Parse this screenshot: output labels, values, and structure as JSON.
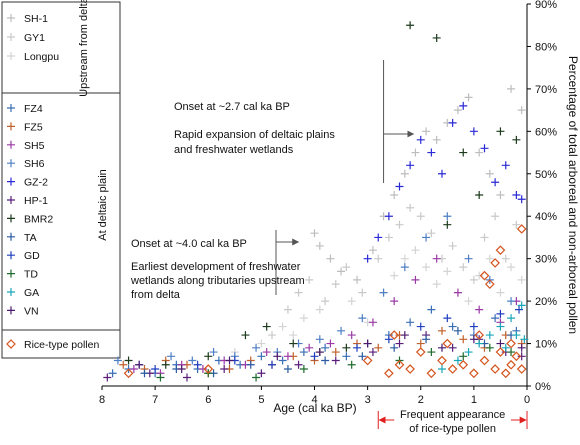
{
  "chart_data": {
    "type": "scatter",
    "xlabel": "Age (cal ka BP)",
    "ylabel": "Percentage of total arboreal and non-arboreal pollen",
    "xlim": [
      8,
      0
    ],
    "ylim": [
      0,
      90
    ],
    "x_reversed": true,
    "xticks": [
      8,
      7,
      6,
      5,
      4,
      3,
      2,
      1,
      0
    ],
    "xtick_labels": [
      "8",
      "7",
      "6",
      "5",
      "4",
      "3",
      "2",
      "1",
      "0"
    ],
    "yticks": [
      0,
      10,
      20,
      30,
      40,
      50,
      60,
      70,
      80,
      90
    ],
    "ytick_labels": [
      "0%",
      "10%",
      "20%",
      "30%",
      "40%",
      "50%",
      "60%",
      "70%",
      "80%",
      "90%"
    ],
    "y_axis_position": "right",
    "grid": false,
    "legend_position": "left",
    "legend_group_labels": [
      "Upstream from delta",
      "At deltaic plain"
    ],
    "series": [
      {
        "name": "SH-1",
        "group": "upstream",
        "marker": "plus",
        "color": "#bdbdbd",
        "points": [
          [
            4.0,
            36
          ],
          [
            3.9,
            33
          ],
          [
            3.7,
            30
          ],
          [
            3.5,
            27
          ],
          [
            3.2,
            25
          ],
          [
            2.9,
            32
          ],
          [
            2.7,
            40
          ],
          [
            2.5,
            45
          ],
          [
            2.3,
            50
          ],
          [
            2.1,
            55
          ],
          [
            1.9,
            60
          ],
          [
            1.7,
            58
          ],
          [
            1.5,
            62
          ],
          [
            1.3,
            65
          ],
          [
            1.1,
            68
          ],
          [
            0.9,
            55
          ],
          [
            0.7,
            50
          ],
          [
            0.5,
            45
          ],
          [
            0.3,
            70
          ],
          [
            0.1,
            65
          ]
        ]
      },
      {
        "name": "GY1",
        "group": "upstream",
        "marker": "plus",
        "color": "#c9c9c9",
        "points": [
          [
            4.8,
            12
          ],
          [
            4.5,
            18
          ],
          [
            4.3,
            22
          ],
          [
            4.1,
            25
          ],
          [
            3.8,
            20
          ],
          [
            3.6,
            24
          ],
          [
            3.4,
            28
          ],
          [
            3.1,
            22
          ],
          [
            2.8,
            30
          ],
          [
            2.6,
            35
          ],
          [
            2.4,
            38
          ],
          [
            2.2,
            42
          ],
          [
            2.0,
            40
          ],
          [
            1.8,
            36
          ],
          [
            1.6,
            30
          ],
          [
            1.4,
            33
          ],
          [
            1.2,
            28
          ],
          [
            1.0,
            25
          ],
          [
            0.8,
            35
          ],
          [
            0.6,
            40
          ],
          [
            0.4,
            30
          ],
          [
            0.2,
            38
          ]
        ]
      },
      {
        "name": "Longpu",
        "group": "upstream",
        "marker": "plus",
        "color": "#d4d4d4",
        "points": [
          [
            5.5,
            8
          ],
          [
            5.0,
            10
          ],
          [
            4.6,
            14
          ],
          [
            4.4,
            12
          ],
          [
            4.2,
            16
          ],
          [
            3.9,
            18
          ],
          [
            3.3,
            20
          ],
          [
            3.0,
            15
          ],
          [
            2.7,
            22
          ],
          [
            2.5,
            26
          ],
          [
            2.3,
            30
          ],
          [
            2.1,
            32
          ],
          [
            1.9,
            28
          ],
          [
            1.7,
            24
          ],
          [
            1.5,
            27
          ],
          [
            1.3,
            22
          ],
          [
            1.1,
            20
          ],
          [
            0.9,
            26
          ],
          [
            0.7,
            30
          ],
          [
            0.5,
            22
          ],
          [
            0.3,
            28
          ],
          [
            0.1,
            25
          ]
        ]
      },
      {
        "name": "FZ4",
        "group": "deltaic",
        "marker": "plus",
        "color": "#3a6fb5",
        "points": [
          [
            7.8,
            3
          ],
          [
            7.5,
            4
          ],
          [
            7.0,
            3
          ],
          [
            6.6,
            5
          ],
          [
            6.2,
            4
          ],
          [
            5.8,
            6
          ],
          [
            5.4,
            5
          ],
          [
            5.0,
            7
          ],
          [
            4.6,
            6
          ],
          [
            4.2,
            8
          ],
          [
            3.8,
            9
          ],
          [
            3.4,
            7
          ],
          [
            3.0,
            10
          ],
          [
            2.6,
            12
          ],
          [
            2.2,
            15
          ],
          [
            1.8,
            18
          ],
          [
            1.4,
            14
          ],
          [
            1.0,
            12
          ],
          [
            0.6,
            16
          ],
          [
            0.2,
            13
          ]
        ]
      },
      {
        "name": "FZ5",
        "group": "deltaic",
        "marker": "plus",
        "color": "#c0602a",
        "points": [
          [
            7.6,
            5
          ],
          [
            7.2,
            4
          ],
          [
            6.8,
            6
          ],
          [
            6.4,
            5
          ],
          [
            6.0,
            3
          ],
          [
            5.6,
            4
          ],
          [
            5.2,
            6
          ],
          [
            4.8,
            5
          ],
          [
            4.4,
            7
          ],
          [
            4.0,
            6
          ],
          [
            3.6,
            8
          ],
          [
            3.2,
            10
          ],
          [
            2.8,
            9
          ],
          [
            2.4,
            12
          ],
          [
            2.0,
            10
          ],
          [
            1.6,
            13
          ],
          [
            1.2,
            11
          ],
          [
            0.8,
            9
          ],
          [
            0.4,
            12
          ],
          [
            0.1,
            10
          ]
        ]
      },
      {
        "name": "SH5",
        "group": "deltaic",
        "marker": "plus",
        "color": "#9b3aa6",
        "points": [
          [
            7.4,
            4
          ],
          [
            6.9,
            3
          ],
          [
            6.5,
            5
          ],
          [
            6.1,
            4
          ],
          [
            5.7,
            6
          ],
          [
            5.3,
            5
          ],
          [
            4.9,
            8
          ],
          [
            4.5,
            7
          ],
          [
            4.1,
            9
          ],
          [
            3.7,
            10
          ],
          [
            3.3,
            12
          ],
          [
            2.9,
            15
          ],
          [
            2.5,
            20
          ],
          [
            2.1,
            25
          ],
          [
            1.7,
            30
          ],
          [
            1.3,
            22
          ],
          [
            0.9,
            18
          ],
          [
            0.5,
            15
          ],
          [
            0.2,
            20
          ]
        ]
      },
      {
        "name": "SH6",
        "group": "deltaic",
        "marker": "plus",
        "color": "#4e7fc4",
        "points": [
          [
            7.7,
            6
          ],
          [
            7.3,
            5
          ],
          [
            6.7,
            7
          ],
          [
            6.3,
            6
          ],
          [
            5.9,
            8
          ],
          [
            5.5,
            7
          ],
          [
            5.1,
            9
          ],
          [
            4.7,
            8
          ],
          [
            4.3,
            10
          ],
          [
            3.9,
            11
          ],
          [
            3.5,
            13
          ],
          [
            3.1,
            16
          ],
          [
            2.7,
            22
          ],
          [
            2.3,
            28
          ],
          [
            1.9,
            35
          ],
          [
            1.5,
            40
          ],
          [
            1.1,
            30
          ],
          [
            0.7,
            25
          ],
          [
            0.3,
            20
          ]
        ]
      },
      {
        "name": "GZ-2",
        "group": "deltaic",
        "marker": "plus",
        "color": "#2b2bd6",
        "points": [
          [
            3.0,
            30
          ],
          [
            2.8,
            35
          ],
          [
            2.6,
            40
          ],
          [
            2.4,
            47
          ],
          [
            2.2,
            52
          ],
          [
            2.0,
            58
          ],
          [
            1.8,
            55
          ],
          [
            1.6,
            50
          ],
          [
            1.4,
            62
          ],
          [
            1.2,
            66
          ],
          [
            1.0,
            60
          ],
          [
            0.8,
            56
          ],
          [
            0.6,
            48
          ],
          [
            0.4,
            52
          ],
          [
            0.2,
            45
          ],
          [
            0.1,
            44
          ]
        ]
      },
      {
        "name": "HP-1",
        "group": "deltaic",
        "marker": "plus",
        "color": "#5a1e7a",
        "points": [
          [
            7.9,
            2
          ],
          [
            7.1,
            3
          ],
          [
            6.4,
            2
          ],
          [
            5.7,
            4
          ],
          [
            5.0,
            3
          ],
          [
            4.3,
            5
          ],
          [
            3.6,
            6
          ],
          [
            2.9,
            8
          ],
          [
            2.4,
            10
          ],
          [
            1.9,
            12
          ],
          [
            1.4,
            9
          ],
          [
            0.9,
            11
          ],
          [
            0.4,
            8
          ],
          [
            0.1,
            7
          ]
        ]
      },
      {
        "name": "BMR2",
        "group": "deltaic",
        "marker": "plus",
        "color": "#1c3a1c",
        "points": [
          [
            7.5,
            6
          ],
          [
            6.8,
            5
          ],
          [
            6.0,
            7
          ],
          [
            5.3,
            12
          ],
          [
            4.9,
            14
          ],
          [
            4.4,
            10
          ],
          [
            3.9,
            8
          ],
          [
            3.4,
            9
          ],
          [
            2.2,
            85
          ],
          [
            1.7,
            82
          ],
          [
            1.5,
            38
          ],
          [
            1.2,
            55
          ],
          [
            0.9,
            45
          ],
          [
            0.5,
            60
          ],
          [
            0.2,
            58
          ]
        ]
      },
      {
        "name": "TA",
        "group": "deltaic",
        "marker": "plus",
        "color": "#2a5aa0",
        "points": [
          [
            7.2,
            3
          ],
          [
            6.6,
            4
          ],
          [
            5.9,
            3
          ],
          [
            5.2,
            5
          ],
          [
            4.5,
            4
          ],
          [
            3.8,
            6
          ],
          [
            3.1,
            7
          ],
          [
            2.5,
            9
          ],
          [
            1.9,
            11
          ],
          [
            1.3,
            13
          ],
          [
            0.8,
            10
          ],
          [
            0.3,
            12
          ]
        ]
      },
      {
        "name": "GD",
        "group": "deltaic",
        "marker": "plus",
        "color": "#1f3fbf",
        "points": [
          [
            7.0,
            4
          ],
          [
            6.2,
            5
          ],
          [
            5.5,
            6
          ],
          [
            4.8,
            5
          ],
          [
            4.0,
            7
          ],
          [
            3.2,
            9
          ],
          [
            2.6,
            11
          ],
          [
            2.0,
            14
          ],
          [
            1.5,
            16
          ],
          [
            1.0,
            14
          ],
          [
            0.5,
            17
          ],
          [
            0.15,
            18
          ]
        ]
      },
      {
        "name": "TD",
        "group": "deltaic",
        "marker": "plus",
        "color": "#1e6b2e",
        "points": [
          [
            6.9,
            2
          ],
          [
            6.0,
            3
          ],
          [
            5.1,
            2
          ],
          [
            4.2,
            4
          ],
          [
            3.3,
            5
          ],
          [
            2.4,
            6
          ],
          [
            1.8,
            8
          ],
          [
            1.2,
            7
          ],
          [
            0.7,
            9
          ],
          [
            0.3,
            8
          ]
        ]
      },
      {
        "name": "GA",
        "group": "deltaic",
        "marker": "plus",
        "color": "#1aa6b8",
        "points": [
          [
            1.6,
            4
          ],
          [
            1.3,
            6
          ],
          [
            1.1,
            8
          ],
          [
            0.9,
            10
          ],
          [
            0.7,
            12
          ],
          [
            0.5,
            14
          ],
          [
            0.4,
            9
          ],
          [
            0.3,
            16
          ],
          [
            0.2,
            12
          ],
          [
            0.1,
            19
          ],
          [
            0.05,
            11
          ]
        ]
      },
      {
        "name": "VN",
        "group": "deltaic",
        "marker": "plus",
        "color": "#4b1a6e",
        "points": [
          [
            7.3,
            5
          ],
          [
            6.5,
            4
          ],
          [
            5.6,
            6
          ],
          [
            4.7,
            7
          ],
          [
            3.9,
            8
          ],
          [
            3.0,
            10
          ],
          [
            2.3,
            12
          ],
          [
            1.6,
            9
          ],
          [
            1.0,
            11
          ],
          [
            0.5,
            10
          ],
          [
            0.1,
            9
          ]
        ]
      },
      {
        "name": "Rice-type pollen",
        "group": "rice",
        "marker": "diamond",
        "color": "#d4541e",
        "points": [
          [
            7.5,
            3
          ],
          [
            6.0,
            4
          ],
          [
            3.0,
            6
          ],
          [
            2.6,
            3
          ],
          [
            2.4,
            5
          ],
          [
            2.2,
            4
          ],
          [
            2.0,
            8
          ],
          [
            1.8,
            3
          ],
          [
            1.6,
            6
          ],
          [
            1.4,
            4
          ],
          [
            1.2,
            5
          ],
          [
            1.0,
            3
          ],
          [
            0.8,
            6
          ],
          [
            0.6,
            4
          ],
          [
            0.5,
            8
          ],
          [
            0.4,
            3
          ],
          [
            0.3,
            5
          ],
          [
            0.2,
            7
          ],
          [
            0.1,
            4
          ],
          [
            0.8,
            26
          ],
          [
            0.7,
            24
          ],
          [
            0.6,
            29
          ],
          [
            0.5,
            32
          ],
          [
            0.1,
            37
          ],
          [
            2.5,
            12
          ],
          [
            1.5,
            10
          ],
          [
            0.9,
            12
          ],
          [
            0.3,
            10
          ]
        ]
      }
    ],
    "annotations": [
      {
        "id": "onset-27",
        "x": 2.7,
        "lines": [
          "Onset at ~2.7 cal ka BP",
          "Rapid expansion of deltaic plains",
          "and freshwater wetlands"
        ]
      },
      {
        "id": "onset-40",
        "x": 4.0,
        "lines": [
          "Onset at ~4.0 cal ka BP",
          "Earliest development of freshwater",
          "wetlands along tributaries upstream",
          "from delta"
        ]
      },
      {
        "id": "rice-range",
        "x_range": [
          2.8,
          0
        ],
        "lines": [
          "Frequent appearance",
          "of rice-type pollen"
        ]
      }
    ]
  }
}
